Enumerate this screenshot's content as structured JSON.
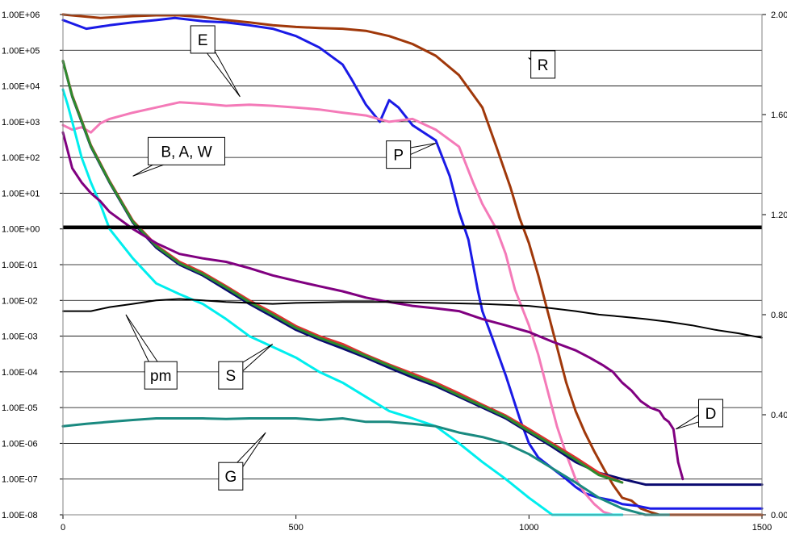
{
  "chart_data": {
    "type": "line",
    "title": "",
    "xlabel": "",
    "ylabel": "",
    "y_scale": "log",
    "grid": true,
    "xlim": [
      0,
      1500
    ],
    "ylim": [
      1e-08,
      1000000.0
    ],
    "y2lim": [
      0,
      2
    ],
    "x_ticks": [
      0,
      500,
      1000,
      1500
    ],
    "x_tick_labels": [
      "0",
      "500",
      "1000",
      "1500"
    ],
    "y_tick_labels": [
      "1.00E+06",
      "1.00E+05",
      "1.00E+04",
      "1.00E+03",
      "1.00E+02",
      "1.00E+01",
      "1.00E+00",
      "1.00E-01",
      "1.00E-02",
      "1.00E-03",
      "1.00E-04",
      "1.00E-05",
      "1.00E-06",
      "1.00E-07",
      "1.00E-08"
    ],
    "y2_tick_labels": [
      "2.00",
      "1.60",
      "1.20",
      "0.80",
      "0.40",
      "0.00"
    ],
    "y2_ticks": [
      2.0,
      1.6,
      1.2,
      0.8,
      0.4,
      0.0
    ],
    "reference_line": {
      "y": 1.15,
      "color": "#000000"
    },
    "series": [
      {
        "key": "R",
        "color": "#A0380A",
        "x": [
          0,
          80,
          150,
          200,
          250,
          300,
          350,
          400,
          450,
          500,
          550,
          600,
          650,
          700,
          750,
          800,
          850,
          900,
          930,
          960,
          980,
          1000,
          1020,
          1040,
          1060,
          1080,
          1100,
          1120,
          1140,
          1160,
          1180,
          1200,
          1220,
          1240,
          1260,
          1280,
          1300,
          1320,
          1340,
          1500
        ],
        "y": [
          1000000,
          800000,
          900000,
          950000,
          950000,
          850000,
          700000,
          600000,
          500000,
          450000,
          420000,
          400000,
          350000,
          250000,
          150000,
          70000,
          20000,
          2500,
          200,
          15,
          2,
          0.4,
          0.05,
          0.005,
          0.0005,
          5e-05,
          8e-06,
          2e-06,
          6e-07,
          2e-07,
          7e-08,
          3e-08,
          2.5e-08,
          1.5e-08,
          1.2e-08,
          1e-08,
          1e-08,
          1e-08,
          1e-08,
          1e-08
        ]
      },
      {
        "key": "P",
        "color": "#1A1AE6",
        "x": [
          0,
          50,
          100,
          150,
          200,
          240,
          300,
          350,
          400,
          450,
          500,
          550,
          600,
          620,
          650,
          680,
          700,
          720,
          750,
          800,
          830,
          850,
          870,
          890,
          900,
          920,
          950,
          980,
          1000,
          1020,
          1050,
          1080,
          1100,
          1120,
          1150,
          1180,
          1200,
          1230,
          1260,
          1300,
          1350,
          1500
        ],
        "y": [
          700000,
          400000,
          500000,
          600000,
          700000,
          800000,
          650000,
          600000,
          500000,
          400000,
          250000,
          120000,
          40000,
          15000,
          3000,
          1000,
          4000,
          2500,
          800,
          300,
          30,
          3,
          0.5,
          0.02,
          0.005,
          0.001,
          8e-05,
          5e-06,
          1e-06,
          4e-07,
          2e-07,
          1e-07,
          6e-08,
          4e-08,
          3e-08,
          2.5e-08,
          2e-08,
          1.8e-08,
          1.5e-08,
          1.5e-08,
          1.5e-08,
          1.5e-08
        ]
      },
      {
        "key": "E",
        "color": "#F47AB8",
        "x": [
          0,
          20,
          40,
          60,
          80,
          100,
          150,
          200,
          250,
          300,
          350,
          400,
          450,
          500,
          550,
          600,
          650,
          700,
          750,
          800,
          850,
          880,
          900,
          930,
          950,
          970,
          1000,
          1020,
          1040,
          1060,
          1080,
          1100,
          1120,
          1140,
          1160,
          1180,
          1200
        ],
        "y": [
          800,
          600,
          700,
          500,
          900,
          1200,
          1800,
          2500,
          3500,
          3200,
          2800,
          3000,
          2800,
          2500,
          2200,
          1800,
          1500,
          1000,
          1200,
          600,
          200,
          20,
          5,
          1,
          0.2,
          0.02,
          0.002,
          0.0003,
          3e-05,
          3e-06,
          5e-07,
          1e-07,
          4e-08,
          2e-08,
          1.2e-08,
          1e-08,
          1e-08
        ]
      },
      {
        "key": "S",
        "color": "#00EEEE",
        "x": [
          0,
          10,
          20,
          40,
          60,
          80,
          100,
          150,
          200,
          250,
          300,
          350,
          400,
          450,
          500,
          550,
          600,
          650,
          700,
          750,
          800,
          850,
          900,
          950,
          1000,
          1050,
          1100,
          1150,
          1200
        ],
        "y": [
          8000,
          3000,
          1000,
          100,
          20,
          5,
          1,
          0.15,
          0.03,
          0.015,
          0.008,
          0.003,
          0.001,
          0.0005,
          0.00025,
          0.0001,
          5e-05,
          2e-05,
          8e-06,
          5e-06,
          3e-06,
          1e-06,
          3e-07,
          1e-07,
          3e-08,
          1e-08,
          6e-09,
          5e-09,
          5e-09
        ]
      },
      {
        "key": "B",
        "color": "#0A0A70",
        "x": [
          0,
          20,
          40,
          60,
          100,
          150,
          200,
          250,
          300,
          350,
          400,
          450,
          500,
          550,
          600,
          650,
          700,
          750,
          800,
          850,
          900,
          950,
          1000,
          1050,
          1100,
          1150,
          1200,
          1250,
          1300,
          1500
        ],
        "y": [
          50000,
          5000,
          1000,
          200,
          20,
          1.5,
          0.3,
          0.1,
          0.05,
          0.02,
          0.008,
          0.0035,
          0.0015,
          0.0008,
          0.00045,
          0.00025,
          0.00013,
          7e-05,
          4e-05,
          2e-05,
          1e-05,
          5e-06,
          2e-06,
          8e-07,
          3e-07,
          1.5e-07,
          1e-07,
          7e-08,
          7e-08,
          7e-08
        ]
      },
      {
        "key": "A",
        "color": "#E03030",
        "x": [
          0,
          20,
          40,
          60,
          100,
          150,
          200,
          250,
          300,
          350,
          400,
          450,
          500,
          550,
          600,
          650,
          700,
          750,
          800,
          850,
          900,
          950,
          1000,
          1050,
          1100,
          1150,
          1200
        ],
        "y": [
          50000,
          5500,
          1100,
          220,
          22,
          1.7,
          0.35,
          0.12,
          0.06,
          0.025,
          0.01,
          0.0045,
          0.0019,
          0.001,
          0.0006,
          0.0003,
          0.00016,
          9e-05,
          5e-05,
          2.5e-05,
          1.2e-05,
          6e-06,
          2.5e-06,
          1e-06,
          4e-07,
          1.5e-07,
          8e-08
        ]
      },
      {
        "key": "W",
        "color": "#2E8B2E",
        "x": [
          0,
          20,
          40,
          60,
          100,
          150,
          200,
          250,
          300,
          350,
          400,
          450,
          500,
          550,
          600,
          650,
          700,
          750,
          800,
          850,
          900,
          950,
          1000,
          1050,
          1100,
          1150,
          1200
        ],
        "y": [
          50000,
          5200,
          1050,
          210,
          21,
          1.6,
          0.33,
          0.11,
          0.055,
          0.023,
          0.009,
          0.004,
          0.0017,
          0.0009,
          0.00052,
          0.00028,
          0.00015,
          8e-05,
          4.5e-05,
          2.2e-05,
          1.1e-05,
          5.5e-06,
          2.2e-06,
          9e-07,
          3.5e-07,
          1.3e-07,
          8e-08
        ]
      },
      {
        "key": "D",
        "color": "#800080",
        "x": [
          0,
          20,
          40,
          60,
          80,
          100,
          150,
          200,
          250,
          300,
          350,
          400,
          450,
          500,
          550,
          600,
          650,
          700,
          750,
          800,
          850,
          900,
          950,
          1000,
          1050,
          1100,
          1130,
          1160,
          1180,
          1200,
          1220,
          1240,
          1260,
          1280,
          1290,
          1300,
          1310,
          1320,
          1330
        ],
        "y": [
          500,
          50,
          20,
          10,
          6,
          3,
          1,
          0.4,
          0.2,
          0.15,
          0.12,
          0.08,
          0.05,
          0.035,
          0.025,
          0.018,
          0.012,
          0.009,
          0.007,
          0.006,
          0.005,
          0.003,
          0.002,
          0.0013,
          0.0007,
          0.0004,
          0.00025,
          0.00015,
          0.0001,
          5e-05,
          3e-05,
          1.5e-05,
          1e-05,
          8e-06,
          5e-06,
          4e-06,
          2.5e-06,
          3e-07,
          1e-07
        ]
      },
      {
        "key": "pm",
        "color": "#000000",
        "x": [
          0,
          60,
          100,
          150,
          200,
          250,
          300,
          350,
          400,
          450,
          500,
          600,
          700,
          800,
          900,
          1000,
          1050,
          1100,
          1150,
          1200,
          1250,
          1300,
          1350,
          1400,
          1450,
          1500
        ],
        "y": [
          0.005,
          0.005,
          0.0065,
          0.008,
          0.01,
          0.011,
          0.01,
          0.009,
          0.0085,
          0.008,
          0.0085,
          0.009,
          0.009,
          0.0085,
          0.008,
          0.007,
          0.006,
          0.005,
          0.004,
          0.0035,
          0.003,
          0.0025,
          0.002,
          0.0015,
          0.0012,
          0.0009
        ]
      },
      {
        "key": "G",
        "color": "#1A8A80",
        "x": [
          0,
          50,
          100,
          150,
          200,
          250,
          300,
          350,
          400,
          450,
          500,
          550,
          600,
          650,
          700,
          750,
          800,
          850,
          900,
          950,
          1000,
          1050,
          1100,
          1150,
          1200,
          1250,
          1300
        ],
        "y": [
          3e-06,
          3.5e-06,
          4e-06,
          4.5e-06,
          5e-06,
          5e-06,
          5e-06,
          4.8e-06,
          5e-06,
          5e-06,
          5e-06,
          4.5e-06,
          5e-06,
          4e-06,
          4e-06,
          3.5e-06,
          3e-06,
          2e-06,
          1.5e-06,
          1e-06,
          5e-07,
          2e-07,
          8e-08,
          3e-08,
          1.5e-08,
          1e-08,
          1e-08
        ]
      }
    ],
    "annotations": [
      {
        "key": "R",
        "text": "R",
        "box": [
          1030,
          40000
        ],
        "point": [
          1000,
          60000
        ]
      },
      {
        "key": "E",
        "text": "E",
        "box": [
          300,
          200000
        ],
        "point": [
          380,
          5000
        ]
      },
      {
        "key": "P",
        "text": "P",
        "box": [
          720,
          120
        ],
        "point": [
          800,
          250
        ]
      },
      {
        "key": "BAW",
        "text": "B, A, W",
        "box": [
          265,
          150
        ],
        "point": [
          150,
          30
        ]
      },
      {
        "key": "pm",
        "text": "pm",
        "box": [
          210,
          8e-05
        ],
        "point": [
          135,
          0.004
        ]
      },
      {
        "key": "S",
        "text": "S",
        "box": [
          360,
          8e-05
        ],
        "point": [
          450,
          0.0006
        ]
      },
      {
        "key": "G",
        "text": "G",
        "box": [
          360,
          1.2e-07
        ],
        "point": [
          435,
          2e-06
        ]
      },
      {
        "key": "D",
        "text": "D",
        "box": [
          1390,
          7e-06
        ],
        "point": [
          1315,
          2.5e-06
        ]
      }
    ]
  }
}
